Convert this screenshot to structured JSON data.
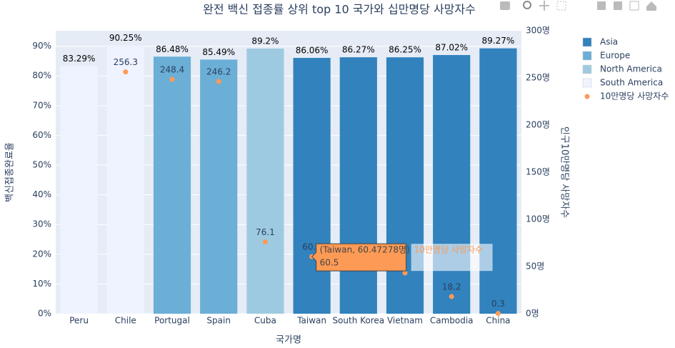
{
  "chart_data": {
    "type": "bar",
    "title": "완전 백신 접종률 상위 top 10 국가와 십만명당 사망자수",
    "xlabel": "국가명",
    "ylabel": "백신접종완료율",
    "y2label": "인구10만명당 사망자수",
    "categories": [
      "Peru",
      "Chile",
      "Portugal",
      "Spain",
      "Cuba",
      "Taiwan",
      "South Korea",
      "Vietnam",
      "Cambodia",
      "China"
    ],
    "series": [
      {
        "name": "Asia",
        "color": "#3182bd",
        "type": "bar",
        "values": [
          null,
          null,
          null,
          null,
          null,
          86.06,
          86.27,
          86.25,
          87.02,
          89.27
        ],
        "value_labels": [
          null,
          null,
          null,
          null,
          null,
          "86.06%",
          "86.27%",
          "86.25%",
          "87.02%",
          "89.27%"
        ]
      },
      {
        "name": "Europe",
        "color": "#6baed6",
        "type": "bar",
        "values": [
          null,
          null,
          86.48,
          85.49,
          null,
          null,
          null,
          null,
          null,
          null
        ],
        "value_labels": [
          null,
          null,
          "86.48%",
          "85.49%",
          null,
          null,
          null,
          null,
          null,
          null
        ]
      },
      {
        "name": "North America",
        "color": "#9ecae1",
        "type": "bar",
        "values": [
          null,
          null,
          null,
          null,
          89.2,
          null,
          null,
          null,
          null,
          null
        ],
        "value_labels": [
          null,
          null,
          null,
          null,
          "89.2%",
          null,
          null,
          null,
          null,
          null
        ]
      },
      {
        "name": "South America",
        "color": "#eff3ff",
        "type": "bar",
        "values": [
          83.29,
          90.25,
          null,
          null,
          null,
          null,
          null,
          null,
          null,
          null
        ],
        "value_labels": [
          "83.29%",
          "90.25%",
          null,
          null,
          null,
          null,
          null,
          null,
          null,
          null
        ]
      },
      {
        "name": "10만명당 사망자수",
        "color": "#fd9a55",
        "type": "scatter",
        "axis": "y2",
        "values": [
          null,
          256.3,
          248.4,
          246.2,
          76.1,
          60.47278,
          55,
          43.2,
          18.2,
          0.3
        ],
        "value_labels": [
          null,
          "256.3",
          "248.4",
          "246.2",
          "76.1",
          "60.5",
          null,
          null,
          "18.2",
          "0.3"
        ]
      }
    ],
    "ylim": [
      0,
      95.2
    ],
    "yticks": [
      {
        "value": 0,
        "label": "0%"
      },
      {
        "value": 10,
        "label": "10%"
      },
      {
        "value": 20,
        "label": "20%"
      },
      {
        "value": 30,
        "label": "30%"
      },
      {
        "value": 40,
        "label": "40%"
      },
      {
        "value": 50,
        "label": "50%"
      },
      {
        "value": 60,
        "label": "60%"
      },
      {
        "value": 70,
        "label": "70%"
      },
      {
        "value": 80,
        "label": "80%"
      },
      {
        "value": 90,
        "label": "90%"
      }
    ],
    "y2lim": [
      0,
      300
    ],
    "y2ticks": [
      {
        "value": 0,
        "label": "0명"
      },
      {
        "value": 50,
        "label": "50명"
      },
      {
        "value": 100,
        "label": "100명"
      },
      {
        "value": 150,
        "label": "150명"
      },
      {
        "value": 200,
        "label": "200명"
      },
      {
        "value": 250,
        "label": "250명"
      },
      {
        "value": 300,
        "label": "300명"
      }
    ],
    "grid": true,
    "legend": "right",
    "hover": {
      "text": "(Taiwan, 60.47278명)",
      "value": "60.5",
      "name": "10만명당 사망자수"
    }
  }
}
